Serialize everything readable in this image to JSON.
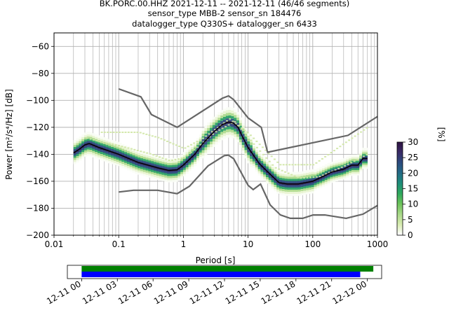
{
  "chart_data": {
    "type": "heatmap",
    "title_lines": [
      "BK.PORC.00.HHZ   2021-12-11 -- 2021-12-11  (46/46 segments)",
      "sensor_type MBB-2 sensor_sn 184476",
      "datalogger_type Q330S+ datalogger_sn 6433"
    ],
    "xlabel": "Period [s]",
    "ylabel": "Power [m²/s⁴/Hz] [dB]",
    "x_scale": "log",
    "xlim": [
      0.01,
      1000
    ],
    "ylim": [
      -200,
      -50
    ],
    "x_ticks": [
      {
        "v": 0.01,
        "label": "0.01"
      },
      {
        "v": 0.1,
        "label": "0.1"
      },
      {
        "v": 1,
        "label": "1"
      },
      {
        "v": 10,
        "label": "10"
      },
      {
        "v": 100,
        "label": "100"
      },
      {
        "v": 1000,
        "label": "1000"
      }
    ],
    "y_ticks": [
      {
        "v": -200,
        "label": "−200"
      },
      {
        "v": -180,
        "label": "−180"
      },
      {
        "v": -160,
        "label": "−160"
      },
      {
        "v": -140,
        "label": "−140"
      },
      {
        "v": -120,
        "label": "−120"
      },
      {
        "v": -100,
        "label": "−100"
      },
      {
        "v": -80,
        "label": "−80"
      },
      {
        "v": -60,
        "label": "−60"
      }
    ],
    "grid": true,
    "colorbar": {
      "label": "[%]",
      "range": [
        0,
        30
      ],
      "ticks": [
        {
          "v": 0,
          "label": "0"
        },
        {
          "v": 5,
          "label": "5"
        },
        {
          "v": 10,
          "label": "10"
        },
        {
          "v": 15,
          "label": "15"
        },
        {
          "v": 20,
          "label": "20"
        },
        {
          "v": 25,
          "label": "25"
        },
        {
          "v": 30,
          "label": "30"
        }
      ],
      "colors": [
        "#ffffff",
        "#d8ecb0",
        "#a8d888",
        "#6cc35a",
        "#2fa85e",
        "#1e8d7b",
        "#246a86",
        "#2c4a7e",
        "#3a2a66",
        "#2d1140"
      ]
    },
    "noise_models": [
      {
        "name": "high",
        "points": [
          [
            0.1,
            -91.5
          ],
          [
            0.22,
            -97.4
          ],
          [
            0.32,
            -110.5
          ],
          [
            0.8,
            -120
          ],
          [
            4,
            -98.5
          ],
          [
            5,
            -96.7
          ],
          [
            6,
            -99.5
          ],
          [
            10,
            -113
          ],
          [
            16,
            -120
          ],
          [
            20,
            -138.5
          ],
          [
            350,
            -126
          ],
          [
            1000,
            -112
          ]
        ]
      },
      {
        "name": "low",
        "points": [
          [
            0.1,
            -168
          ],
          [
            0.17,
            -166.7
          ],
          [
            0.4,
            -166.7
          ],
          [
            0.8,
            -169.2
          ],
          [
            1.24,
            -163.7
          ],
          [
            2.4,
            -148.6
          ],
          [
            4.3,
            -141
          ],
          [
            5,
            -140.7
          ],
          [
            6,
            -143.3
          ],
          [
            10,
            -163
          ],
          [
            12,
            -166.2
          ],
          [
            15.6,
            -162.1
          ],
          [
            21.9,
            -177.5
          ],
          [
            31.6,
            -185
          ],
          [
            45,
            -187.5
          ],
          [
            70,
            -187.5
          ],
          [
            101,
            -185
          ],
          [
            154,
            -185
          ],
          [
            328,
            -187.5
          ],
          [
            600,
            -184.4
          ],
          [
            1000,
            -178
          ]
        ]
      }
    ],
    "mode_curve": [
      [
        0.02,
        -139
      ],
      [
        0.025,
        -136
      ],
      [
        0.03,
        -133
      ],
      [
        0.035,
        -132
      ],
      [
        0.05,
        -135
      ],
      [
        0.1,
        -140
      ],
      [
        0.2,
        -146
      ],
      [
        0.4,
        -150
      ],
      [
        0.6,
        -152
      ],
      [
        0.8,
        -151.5
      ],
      [
        1,
        -148
      ],
      [
        1.5,
        -140
      ],
      [
        2,
        -132
      ],
      [
        3,
        -123
      ],
      [
        4,
        -118
      ],
      [
        5,
        -116
      ],
      [
        6,
        -117
      ],
      [
        7,
        -120
      ],
      [
        8,
        -126
      ],
      [
        10,
        -135
      ],
      [
        15,
        -147
      ],
      [
        20,
        -153
      ],
      [
        30,
        -161
      ],
      [
        40,
        -162
      ],
      [
        60,
        -162
      ],
      [
        100,
        -160
      ],
      [
        150,
        -156
      ],
      [
        200,
        -153
      ],
      [
        300,
        -151
      ],
      [
        400,
        -148
      ],
      [
        500,
        -148
      ],
      [
        600,
        -143
      ],
      [
        700,
        -143
      ]
    ],
    "spread_curves": [
      {
        "name": "upper-faint",
        "points": [
          [
            0.05,
            -124
          ],
          [
            0.2,
            -124
          ],
          [
            0.4,
            -128
          ],
          [
            1,
            -136
          ],
          [
            2,
            -128
          ],
          [
            5,
            -114
          ],
          [
            10,
            -125
          ],
          [
            30,
            -148
          ],
          [
            100,
            -148
          ],
          [
            200,
            -138
          ],
          [
            400,
            -128
          ],
          [
            700,
            -120
          ]
        ]
      },
      {
        "name": "mid-faint",
        "points": [
          [
            0.03,
            -128
          ],
          [
            0.05,
            -131
          ],
          [
            0.1,
            -134
          ],
          [
            0.3,
            -140
          ],
          [
            0.6,
            -145
          ],
          [
            1,
            -143
          ],
          [
            3,
            -124
          ],
          [
            6,
            -116
          ],
          [
            12,
            -133
          ],
          [
            25,
            -150
          ],
          [
            60,
            -158
          ],
          [
            120,
            -157
          ],
          [
            300,
            -149
          ],
          [
            700,
            -140
          ]
        ]
      }
    ]
  },
  "timeline": {
    "tick_labels": [
      "12-11 00",
      "12-11 03",
      "12-11 06",
      "12-11 09",
      "12-11 12",
      "12-11 15",
      "12-11 18",
      "12-11 21",
      "12-12 00"
    ],
    "tick_hours": [
      0,
      3,
      6,
      9,
      12,
      15,
      18,
      21,
      24
    ],
    "hour_range": [
      -1.2,
      25.2
    ],
    "green_bar": [
      0,
      24.5
    ],
    "blue_bar": [
      0,
      23.4
    ],
    "colors": {
      "green": "#008000",
      "blue": "#0000ff"
    }
  }
}
